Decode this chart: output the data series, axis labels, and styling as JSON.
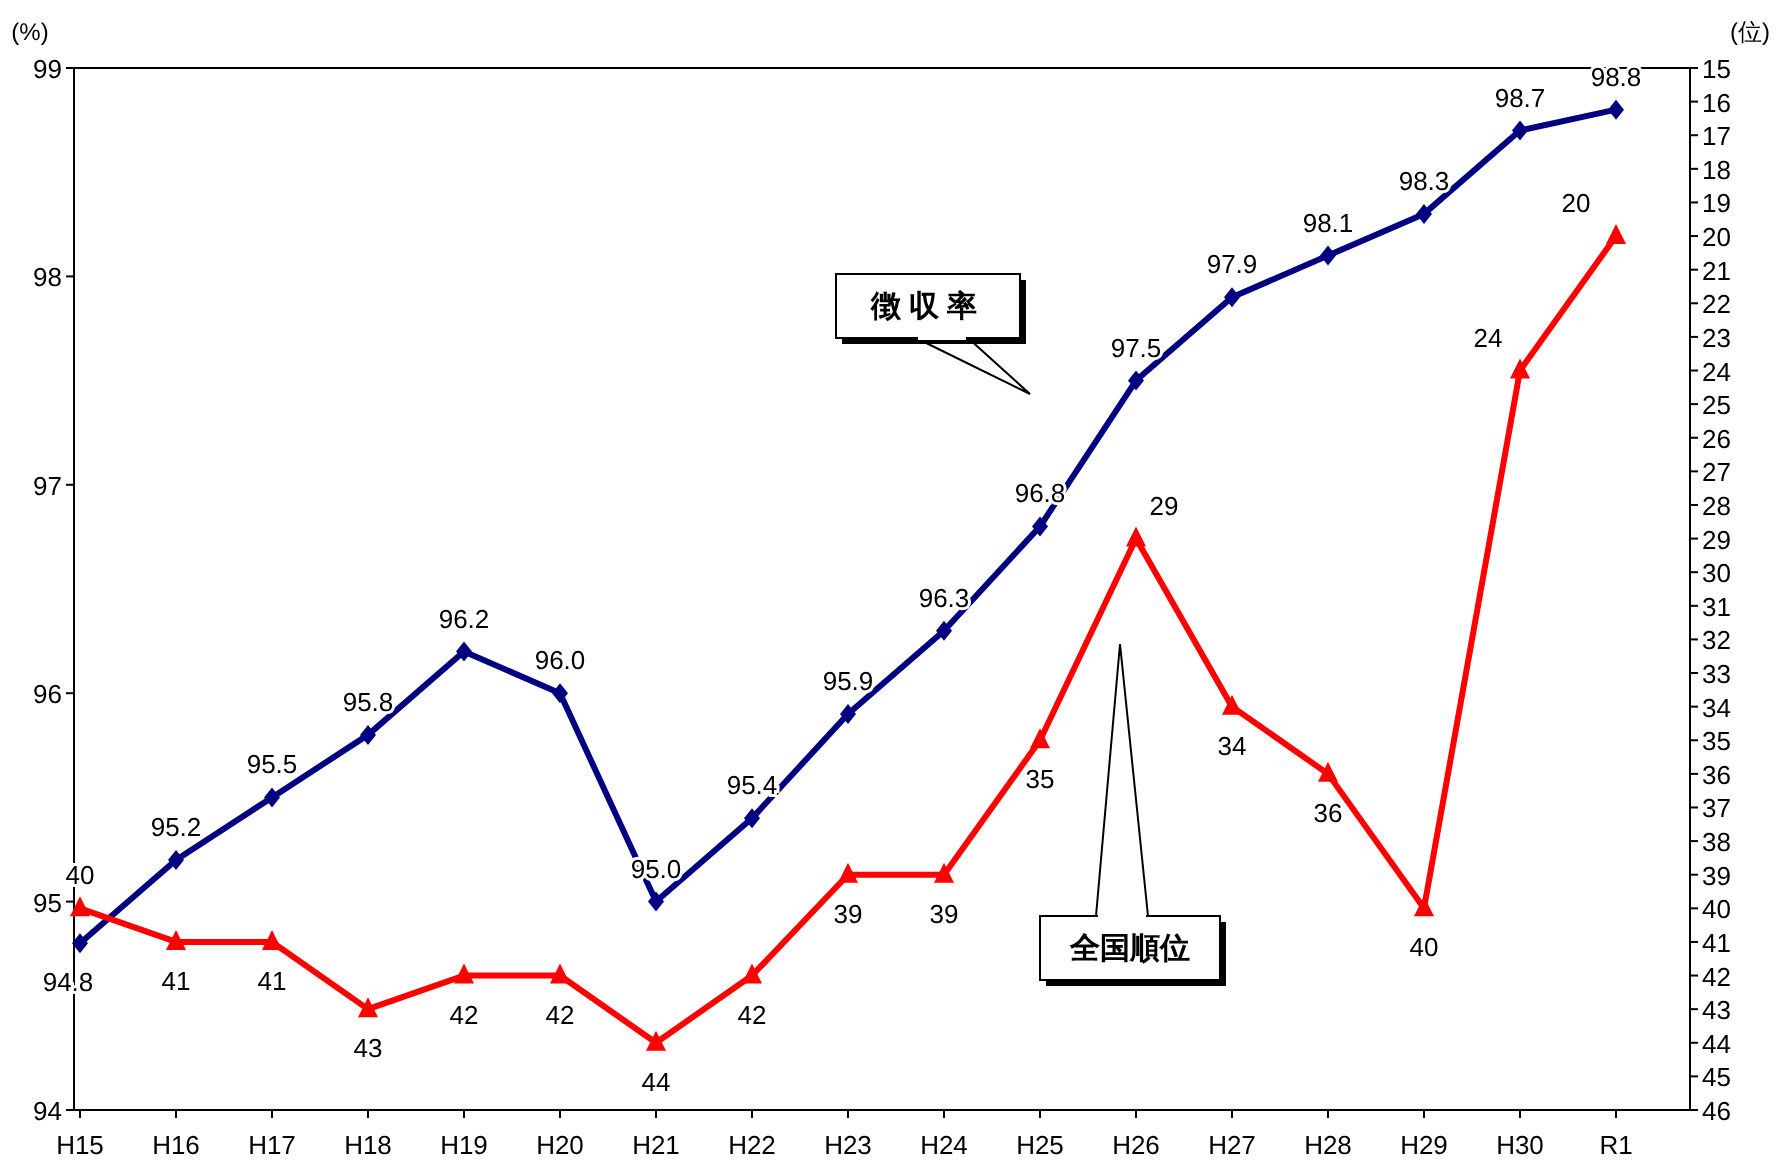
{
  "chart_data": {
    "type": "line",
    "categories": [
      "H15",
      "H16",
      "H17",
      "H18",
      "H19",
      "H20",
      "H21",
      "H22",
      "H23",
      "H24",
      "H25",
      "H26",
      "H27",
      "H28",
      "H29",
      "H30",
      "R1"
    ],
    "ylabel": "(%)",
    "y2label": "(位)",
    "ylim": [
      94,
      99
    ],
    "yticks": [
      94,
      95,
      96,
      97,
      98,
      99
    ],
    "y2lim": [
      46,
      15
    ],
    "y2ticks": [
      15,
      16,
      17,
      18,
      19,
      20,
      21,
      22,
      23,
      24,
      25,
      26,
      27,
      28,
      29,
      30,
      31,
      32,
      33,
      34,
      35,
      36,
      37,
      38,
      39,
      40,
      41,
      42,
      43,
      44,
      45,
      46
    ],
    "data_labels": true,
    "grid": false,
    "line_style": "solid",
    "series": [
      {
        "name": "徴収率",
        "color": "#000080",
        "marker": "diamond",
        "values": [
          94.8,
          95.2,
          95.5,
          95.8,
          96.2,
          96.0,
          95.0,
          95.4,
          95.9,
          96.3,
          96.8,
          97.5,
          97.9,
          98.1,
          98.3,
          98.7,
          98.8
        ],
        "value_labels": [
          "94.8",
          "95.2",
          "95.5",
          "95.8",
          "96.2",
          "96.0",
          "95.0",
          "95.4",
          "95.9",
          "96.3",
          "96.8",
          "97.5",
          "97.9",
          "98.1",
          "98.3",
          "98.7",
          "98.8"
        ]
      },
      {
        "name": "全国順位",
        "color": "#ff0000",
        "marker": "triangle",
        "axis": "y2",
        "values": [
          40,
          41,
          41,
          43,
          42,
          42,
          44,
          42,
          39,
          39,
          35,
          29,
          34,
          36,
          40,
          24,
          20
        ]
      }
    ]
  }
}
